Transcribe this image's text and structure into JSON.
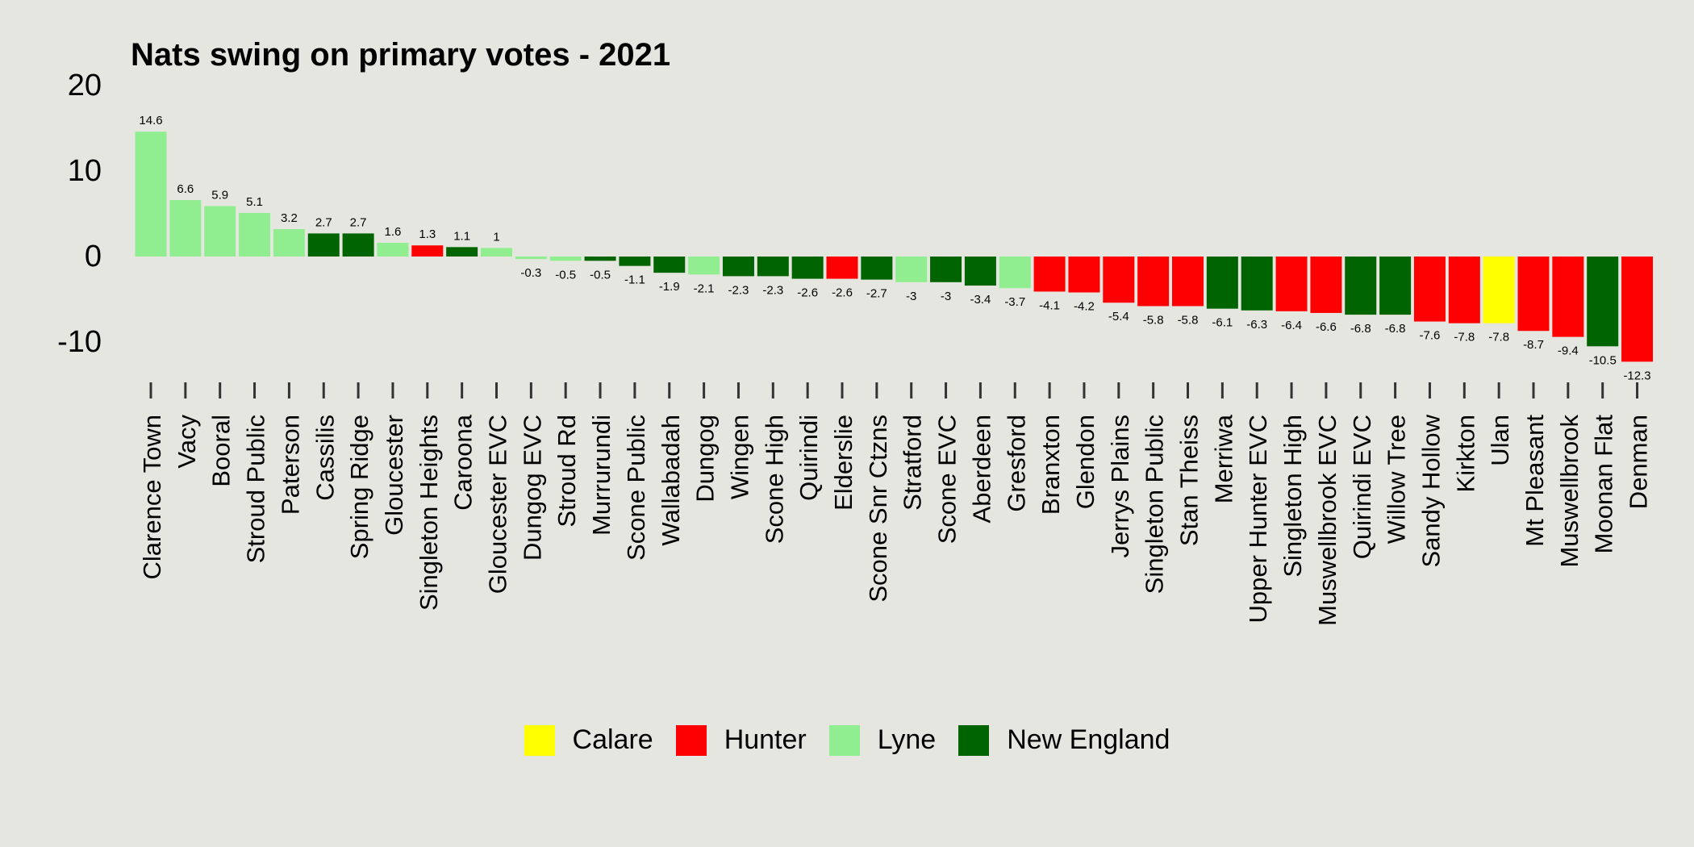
{
  "chart_data": {
    "type": "bar",
    "title": "Nats swing on primary votes - 2021",
    "xlabel": "",
    "ylabel": "",
    "ylim": [
      -15,
      20
    ],
    "yticks": [
      20,
      10,
      0,
      -10
    ],
    "grid": false,
    "legend_position": "bottom",
    "categories": [
      "Clarence Town",
      "Vacy",
      "Booral",
      "Stroud Public",
      "Paterson",
      "Cassilis",
      "Spring Ridge",
      "Gloucester",
      "Singleton Heights",
      "Caroona",
      "Gloucester EVC",
      "Dungog EVC",
      "Stroud Rd",
      "Murrurundi",
      "Scone Public",
      "Wallabadah",
      "Dungog",
      "Wingen",
      "Scone High",
      "Quirindi",
      "Elderslie",
      "Scone Snr Ctzns",
      "Stratford",
      "Scone EVC",
      "Aberdeen",
      "Gresford",
      "Branxton",
      "Glendon",
      "Jerrys Plains",
      "Singleton Public",
      "Stan Theiss",
      "Merriwa",
      "Upper Hunter EVC",
      "Singleton High",
      "Muswellbrook EVC",
      "Quirindi EVC",
      "Willow Tree",
      "Sandy Hollow",
      "Kirkton",
      "Ulan",
      "Mt Pleasant",
      "Muswellbrook",
      "Moonan Flat",
      "Denman"
    ],
    "values": [
      14.6,
      6.6,
      5.9,
      5.1,
      3.2,
      2.7,
      2.7,
      1.6,
      1.3,
      1.1,
      1,
      -0.3,
      -0.5,
      -0.5,
      -1.1,
      -1.9,
      -2.1,
      -2.3,
      -2.3,
      -2.6,
      -2.6,
      -2.7,
      -3,
      -3,
      -3.4,
      -3.7,
      -4.1,
      -4.2,
      -5.4,
      -5.8,
      -5.8,
      -6.1,
      -6.3,
      -6.4,
      -6.6,
      -6.8,
      -6.8,
      -7.6,
      -7.8,
      -7.8,
      -8.7,
      -9.4,
      -10.5,
      -12.3
    ],
    "groups": [
      "Lyne",
      "Lyne",
      "Lyne",
      "Lyne",
      "Lyne",
      "New England",
      "New England",
      "Lyne",
      "Hunter",
      "New England",
      "Lyne",
      "Lyne",
      "Lyne",
      "New England",
      "New England",
      "New England",
      "Lyne",
      "New England",
      "New England",
      "New England",
      "Hunter",
      "New England",
      "Lyne",
      "New England",
      "New England",
      "Lyne",
      "Hunter",
      "Hunter",
      "Hunter",
      "Hunter",
      "Hunter",
      "New England",
      "New England",
      "Hunter",
      "Hunter",
      "New England",
      "New England",
      "Hunter",
      "Hunter",
      "Calare",
      "Hunter",
      "Hunter",
      "New England",
      "Hunter"
    ],
    "legend": [
      {
        "name": "Calare",
        "color": "#ffff00"
      },
      {
        "name": "Hunter",
        "color": "#ff0000"
      },
      {
        "name": "Lyne",
        "color": "#90ee90"
      },
      {
        "name": "New England",
        "color": "#006400"
      }
    ]
  }
}
